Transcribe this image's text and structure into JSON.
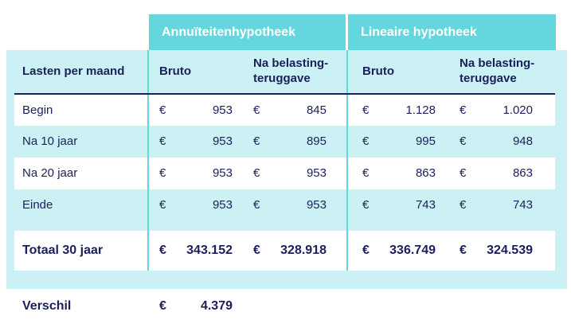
{
  "currency": "€",
  "group_headers": [
    {
      "label": "Annuïteitenhypotheek"
    },
    {
      "label": "Lineaire hypotheek"
    }
  ],
  "column_headers": {
    "row_label": "Lasten per maand",
    "annuitair_bruto": "Bruto",
    "annuitair_net": "Na belasting-teruggave",
    "lineair_bruto": "Bruto",
    "lineair_net": "Na belasting-teruggave"
  },
  "rows": [
    {
      "label": "Begin",
      "a_bruto": "953",
      "a_net": "845",
      "l_bruto": "1.128",
      "l_net": "1.020"
    },
    {
      "label": "Na 10 jaar",
      "a_bruto": "953",
      "a_net": "895",
      "l_bruto": "995",
      "l_net": "948"
    },
    {
      "label": "Na 20 jaar",
      "a_bruto": "953",
      "a_net": "953",
      "l_bruto": "863",
      "l_net": "863"
    },
    {
      "label": "Einde",
      "a_bruto": "953",
      "a_net": "953",
      "l_bruto": "743",
      "l_net": "743"
    }
  ],
  "total_row": {
    "label": "Totaal 30 jaar",
    "a_bruto": "343.152",
    "a_net": "328.918",
    "l_bruto": "336.749",
    "l_net": "324.539"
  },
  "verschil_row": {
    "label": "Verschil",
    "value": "4.379"
  },
  "colors": {
    "teal": "#63d7dd",
    "light_cyan": "#cbf1f5",
    "navy": "#1b1f5a",
    "white": "#ffffff"
  },
  "chart_data": {
    "type": "table",
    "title": "Lasten per maand",
    "column_groups": [
      "Annuïteitenhypotheek",
      "Lineaire hypotheek"
    ],
    "columns": [
      "Lasten per maand",
      "Annuïteitenhypotheek Bruto",
      "Annuïteitenhypotheek Na belasting-teruggave",
      "Lineaire hypotheek Bruto",
      "Lineaire hypotheek Na belasting-teruggave"
    ],
    "rows": [
      [
        "Begin",
        "€ 953",
        "€ 845",
        "€ 1.128",
        "€ 1.020"
      ],
      [
        "Na 10 jaar",
        "€ 953",
        "€ 895",
        "€ 995",
        "€ 948"
      ],
      [
        "Na 20 jaar",
        "€ 953",
        "€ 953",
        "€ 863",
        "€ 863"
      ],
      [
        "Einde",
        "€ 953",
        "€ 953",
        "€ 743",
        "€ 743"
      ],
      [
        "Totaal 30 jaar",
        "€ 343.152",
        "€ 328.918",
        "€ 336.749",
        "€ 324.539"
      ],
      [
        "Verschil",
        "€ 4.379",
        "",
        "",
        ""
      ]
    ]
  }
}
